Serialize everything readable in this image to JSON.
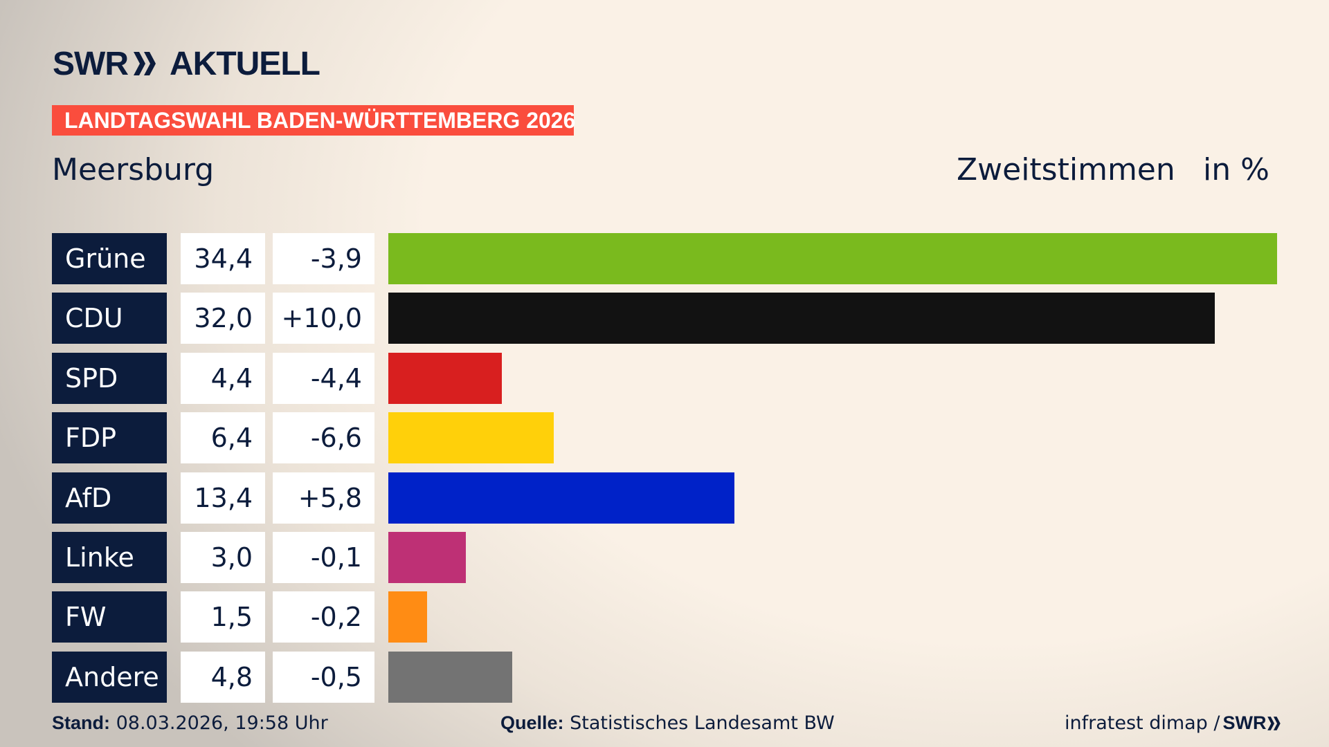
{
  "header": {
    "logo_text": "SWR AKTUELL",
    "banner": "LANDTAGSWAHL BADEN-WÜRTTEMBERG 2026",
    "place": "Meersburg",
    "metric": "Zweitstimmen",
    "unit": "in %"
  },
  "colors": {
    "navy": "#0c1c3c",
    "banner": "#fa4d3d"
  },
  "chart_data": {
    "type": "bar",
    "orientation": "horizontal",
    "categories": [
      "Grüne",
      "CDU",
      "SPD",
      "FDP",
      "AfD",
      "Linke",
      "FW",
      "Andere"
    ],
    "values": [
      34.4,
      32.0,
      4.4,
      6.4,
      13.4,
      3.0,
      1.5,
      4.8
    ],
    "value_labels": [
      "34,4",
      "32,0",
      "4,4",
      "6,4",
      "13,4",
      "3,0",
      "1,5",
      "4,8"
    ],
    "diff_labels": [
      "-3,9",
      "+10,0",
      "-4,4",
      "-6,6",
      "+5,8",
      "-0,1",
      "-0,2",
      "-0,5"
    ],
    "bar_colors": [
      "#7aba1e",
      "#121212",
      "#d81f1f",
      "#ffd00a",
      "#0022c8",
      "#be3075",
      "#ff8c14",
      "#737373"
    ],
    "grid": false
  },
  "footer": {
    "stand_label": "Stand:",
    "stand_value": " 08.03.2026, 19:58 Uhr",
    "source_label": "Quelle:",
    "source_value": " Statistisches Landesamt BW",
    "credit": "infratest dimap / ",
    "credit_logo": "SWR"
  }
}
